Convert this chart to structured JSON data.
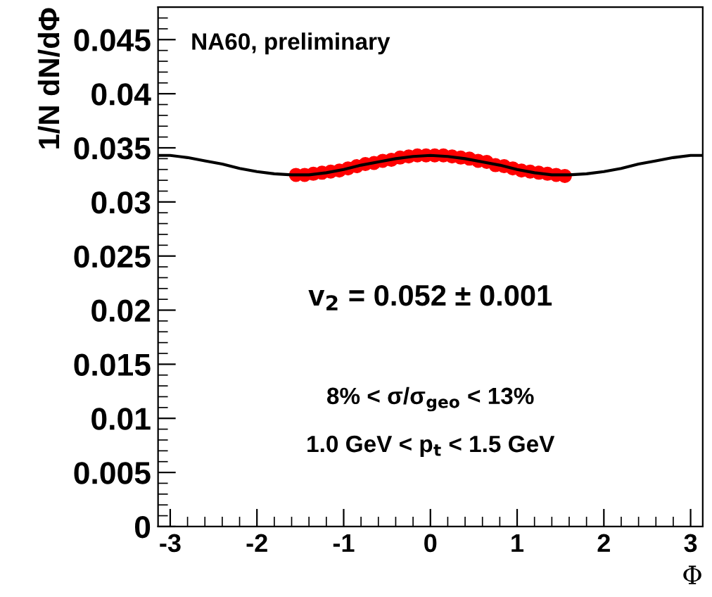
{
  "chart_data": {
    "type": "line",
    "xlabel": "Φ",
    "ylabel": "1/N dN/dΦ",
    "annotations": [
      "NA60, preliminary",
      "v$_{2}$ = 0.052 ± 0.001",
      "8% < σ/σ$_{geo}$ < 13%",
      "1.0 GeV < p$_{t}$ < 1.5 GeV"
    ],
    "series": [
      {
        "color": "#000000",
        "x": [
          -3.14,
          -3.0,
          -2.8,
          -2.6,
          -2.4,
          -2.2,
          -2.0,
          -1.8,
          -1.6,
          -1.4,
          -1.2,
          -1.0,
          -0.8,
          -0.6,
          -0.4,
          -0.2,
          0,
          0.2,
          0.4,
          0.6,
          0.8,
          1.0,
          1.2,
          1.4,
          1.6,
          1.8,
          2.0,
          2.2,
          2.4,
          2.6,
          2.8,
          3.0,
          3.14
        ],
        "values": [
          0.0343,
          0.0343,
          0.0341,
          0.0338,
          0.0335,
          0.0331,
          0.0328,
          0.0326,
          0.0325,
          0.0325,
          0.0327,
          0.033,
          0.0334,
          0.0337,
          0.034,
          0.0342,
          0.0343,
          0.0342,
          0.034,
          0.0337,
          0.0334,
          0.033,
          0.0327,
          0.0325,
          0.0325,
          0.0326,
          0.0328,
          0.0331,
          0.0335,
          0.0338,
          0.0341,
          0.0343,
          0.0343
        ]
      },
      {
        "type": "scatter",
        "color": "#ff0000",
        "marker": "circle",
        "x": [
          -1.55,
          -1.45,
          -1.35,
          -1.25,
          -1.15,
          -1.05,
          -0.95,
          -0.85,
          -0.75,
          -0.65,
          -0.55,
          -0.45,
          -0.35,
          -0.25,
          -0.15,
          -0.05,
          0.05,
          0.15,
          0.25,
          0.35,
          0.45,
          0.55,
          0.65,
          0.75,
          0.85,
          0.95,
          1.05,
          1.15,
          1.25,
          1.35,
          1.45,
          1.55
        ],
        "values": [
          0.0325,
          0.0325,
          0.0326,
          0.0327,
          0.0328,
          0.0329,
          0.0331,
          0.0333,
          0.0335,
          0.0336,
          0.0338,
          0.0339,
          0.0341,
          0.0342,
          0.0343,
          0.0343,
          0.0343,
          0.0343,
          0.0342,
          0.0341,
          0.034,
          0.0338,
          0.0337,
          0.0334,
          0.0333,
          0.0331,
          0.0329,
          0.0328,
          0.0327,
          0.0326,
          0.0325,
          0.0324
        ]
      }
    ],
    "xlim": [
      -3.14,
      3.14
    ],
    "xticks": [
      -3,
      -2,
      -1,
      0,
      1,
      2,
      3
    ],
    "ylim": [
      0,
      0.048
    ],
    "yticks": [
      0,
      0.005,
      0.01,
      0.015,
      0.02,
      0.025,
      0.03,
      0.035,
      0.04,
      0.045
    ],
    "grid": false,
    "legend": false
  }
}
